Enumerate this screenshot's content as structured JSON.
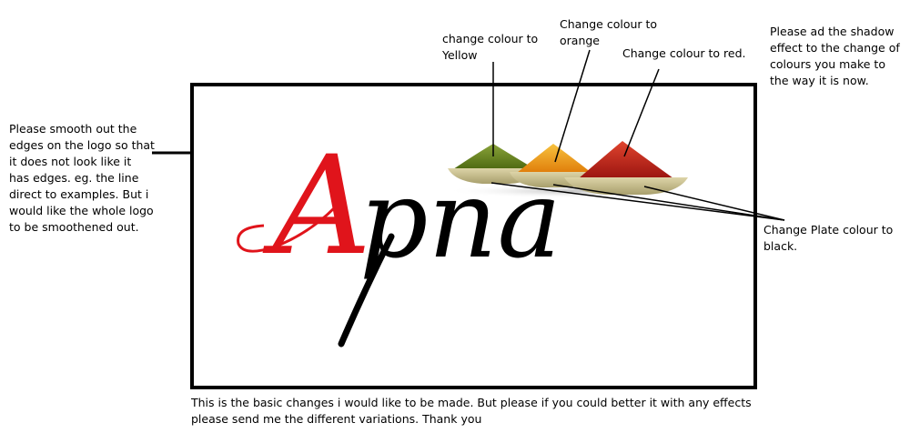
{
  "annotations": {
    "yellow": "change colour to Yellow",
    "orange": "Change colour to orange",
    "red": "Change colour to red.",
    "shadow": "Please ad the shadow effect to the change of colours you make to the way it is now.",
    "smooth": "Please smooth out the edges on the logo so that it does not look like it has edges. eg. the line direct to examples. But i would like the whole logo to be smoothened out.",
    "plate": "Change Plate colour to black.",
    "footer": "This is the basic changes i would like to be made. But please if you could better it with any effects please send me the different variations. Thank you"
  },
  "logo": {
    "first_letter": "A",
    "rest": "pna",
    "colors": {
      "first_letter": "#e0141b",
      "rest": "#000000",
      "spice_green": "#6f8a1e",
      "spice_orange": "#f0a21a",
      "spice_red": "#c4201a",
      "plate": "#c8bf8e"
    }
  }
}
